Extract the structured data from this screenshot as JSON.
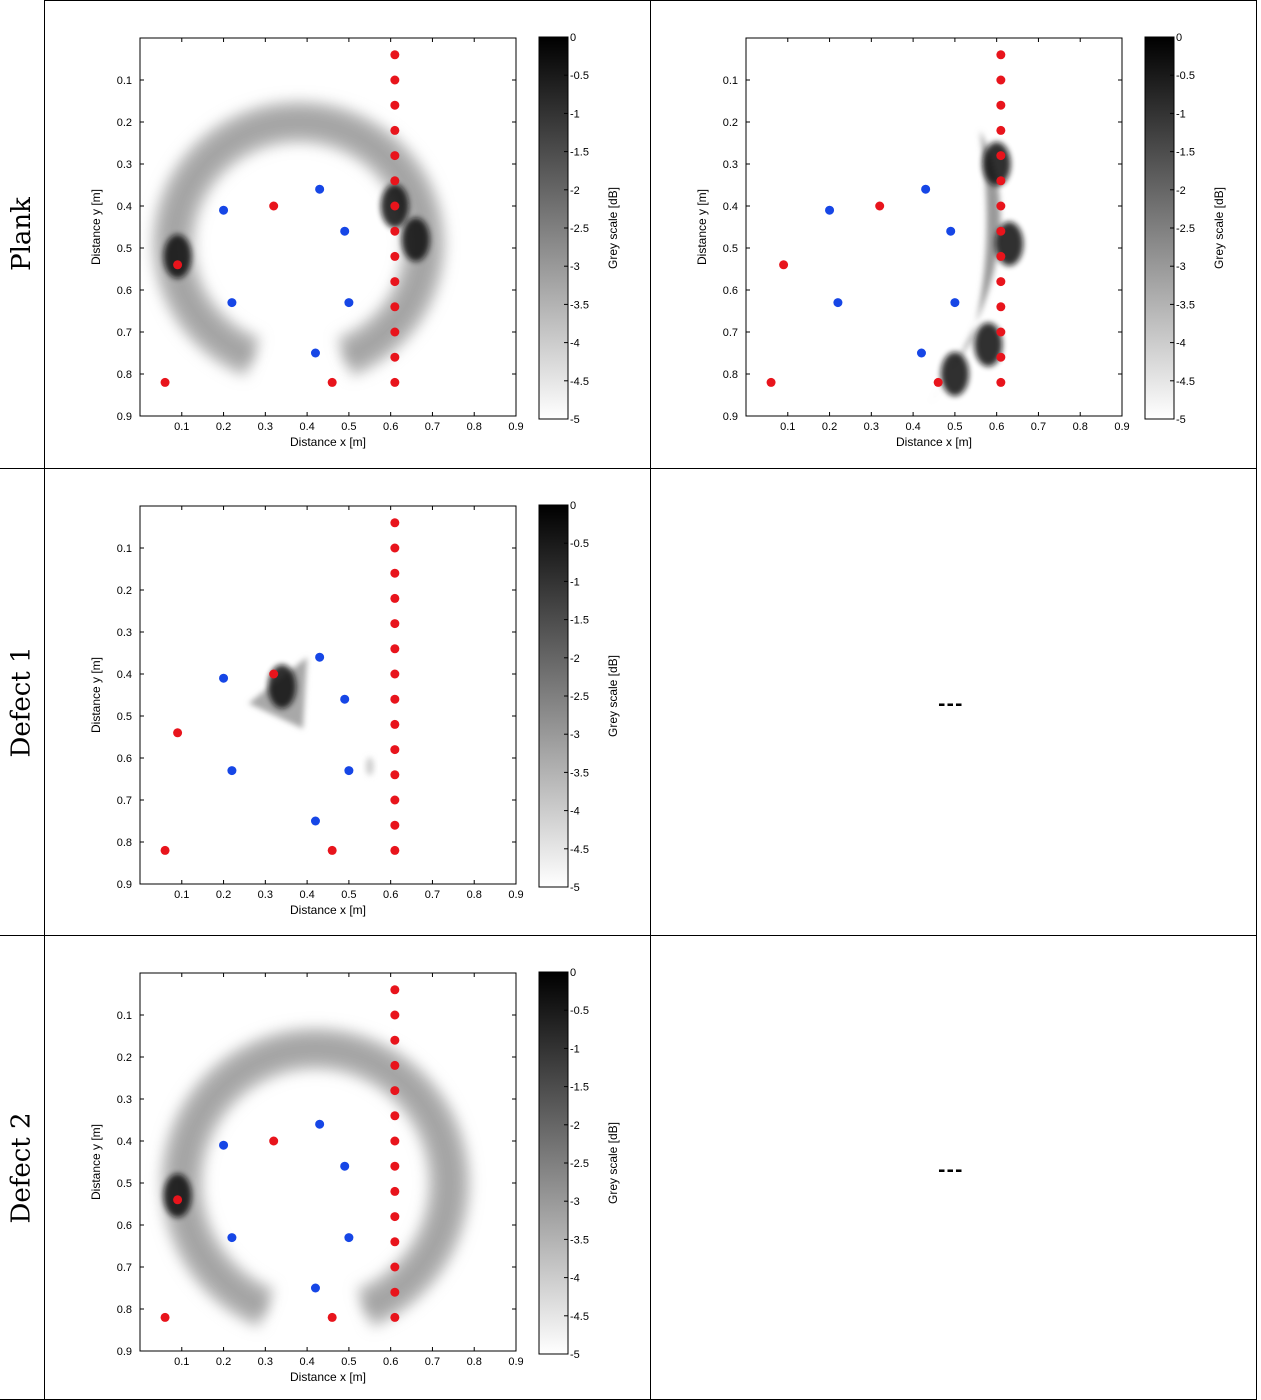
{
  "rows": [
    {
      "label": "Plank"
    },
    {
      "label": "Defect 1"
    },
    {
      "label": "Defect 2"
    }
  ],
  "placeholder_text": "---",
  "colors": {
    "red_marker": "#e8141c",
    "blue_marker": "#1646e6",
    "axis": "#000000"
  },
  "chart_data": [
    {
      "type": "heatmap",
      "panel": "Plank-left",
      "xlabel": "Distance x [m]",
      "ylabel": "Distance y [m]",
      "colorbar_label": "Grey scale [dB]",
      "xticks": [
        "0.1",
        "0.2",
        "0.3",
        "0.4",
        "0.5",
        "0.6",
        "0.7",
        "0.8",
        "0.9"
      ],
      "yticks": [
        "0.1",
        "0.2",
        "0.3",
        "0.4",
        "0.5",
        "0.6",
        "0.7",
        "0.8",
        "0.9"
      ],
      "cbar_ticks": [
        "0",
        "-0.5",
        "-1",
        "-1.5",
        "-2",
        "-2.5",
        "-3",
        "-3.5",
        "-4",
        "-4.5",
        "-5"
      ],
      "xlim": [
        0,
        0.9
      ],
      "ylim": [
        0,
        0.9
      ],
      "clim": [
        -5,
        0
      ],
      "red_points": [
        [
          0.61,
          0.04
        ],
        [
          0.61,
          0.1
        ],
        [
          0.61,
          0.16
        ],
        [
          0.61,
          0.22
        ],
        [
          0.61,
          0.28
        ],
        [
          0.61,
          0.34
        ],
        [
          0.61,
          0.4
        ],
        [
          0.61,
          0.46
        ],
        [
          0.61,
          0.52
        ],
        [
          0.61,
          0.58
        ],
        [
          0.61,
          0.64
        ],
        [
          0.61,
          0.7
        ],
        [
          0.61,
          0.76
        ],
        [
          0.61,
          0.82
        ],
        [
          0.32,
          0.4
        ],
        [
          0.09,
          0.54
        ],
        [
          0.06,
          0.82
        ],
        [
          0.46,
          0.82
        ]
      ],
      "blue_points": [
        [
          0.43,
          0.36
        ],
        [
          0.2,
          0.41
        ],
        [
          0.49,
          0.46
        ],
        [
          0.22,
          0.63
        ],
        [
          0.5,
          0.63
        ],
        [
          0.42,
          0.75
        ]
      ],
      "heat": {
        "kind": "ring",
        "cx": 0.38,
        "cy": 0.49,
        "rx": 0.3,
        "ry": 0.29,
        "width": 0.07,
        "from": 0.0,
        "to": 1.0,
        "dark": [
          [
            0.09,
            0.52
          ],
          [
            0.66,
            0.48
          ],
          [
            0.61,
            0.4
          ]
        ]
      }
    },
    {
      "type": "heatmap",
      "panel": "Plank-right",
      "xlabel": "Distance x [m]",
      "ylabel": "Distance y [m]",
      "colorbar_label": "Grey scale [dB]",
      "xticks": [
        "0.1",
        "0.2",
        "0.3",
        "0.4",
        "0.5",
        "0.6",
        "0.7",
        "0.8",
        "0.9"
      ],
      "yticks": [
        "0.1",
        "0.2",
        "0.3",
        "0.4",
        "0.5",
        "0.6",
        "0.7",
        "0.8",
        "0.9"
      ],
      "cbar_ticks": [
        "0",
        "-0.5",
        "-1",
        "-1.5",
        "-2",
        "-2.5",
        "-3",
        "-3.5",
        "-4",
        "-4.5",
        "-5"
      ],
      "xlim": [
        0,
        0.9
      ],
      "ylim": [
        0,
        0.9
      ],
      "clim": [
        -5,
        0
      ],
      "red_points": [
        [
          0.61,
          0.04
        ],
        [
          0.61,
          0.1
        ],
        [
          0.61,
          0.16
        ],
        [
          0.61,
          0.22
        ],
        [
          0.61,
          0.28
        ],
        [
          0.61,
          0.34
        ],
        [
          0.61,
          0.4
        ],
        [
          0.61,
          0.46
        ],
        [
          0.61,
          0.52
        ],
        [
          0.61,
          0.58
        ],
        [
          0.61,
          0.64
        ],
        [
          0.61,
          0.7
        ],
        [
          0.61,
          0.76
        ],
        [
          0.61,
          0.82
        ],
        [
          0.32,
          0.4
        ],
        [
          0.09,
          0.54
        ],
        [
          0.06,
          0.82
        ],
        [
          0.46,
          0.82
        ]
      ],
      "blue_points": [
        [
          0.43,
          0.36
        ],
        [
          0.2,
          0.41
        ],
        [
          0.49,
          0.46
        ],
        [
          0.22,
          0.63
        ],
        [
          0.5,
          0.63
        ],
        [
          0.42,
          0.75
        ]
      ],
      "heat": {
        "kind": "crescent",
        "dark": [
          [
            0.6,
            0.3
          ],
          [
            0.63,
            0.49
          ],
          [
            0.58,
            0.73
          ],
          [
            0.5,
            0.8
          ]
        ]
      }
    },
    {
      "type": "heatmap",
      "panel": "Defect1-left",
      "xlabel": "Distance x [m]",
      "ylabel": "Distance y [m]",
      "colorbar_label": "Grey scale [dB]",
      "xticks": [
        "0.1",
        "0.2",
        "0.3",
        "0.4",
        "0.5",
        "0.6",
        "0.7",
        "0.8",
        "0.9"
      ],
      "yticks": [
        "0.1",
        "0.2",
        "0.3",
        "0.4",
        "0.5",
        "0.6",
        "0.7",
        "0.8",
        "0.9"
      ],
      "cbar_ticks": [
        "0",
        "-0.5",
        "-1",
        "-1.5",
        "-2",
        "-2.5",
        "-3",
        "-3.5",
        "-4",
        "-4.5",
        "-5"
      ],
      "xlim": [
        0,
        0.9
      ],
      "ylim": [
        0,
        0.9
      ],
      "clim": [
        -5,
        0
      ],
      "red_points": [
        [
          0.61,
          0.04
        ],
        [
          0.61,
          0.1
        ],
        [
          0.61,
          0.16
        ],
        [
          0.61,
          0.22
        ],
        [
          0.61,
          0.28
        ],
        [
          0.61,
          0.34
        ],
        [
          0.61,
          0.4
        ],
        [
          0.61,
          0.46
        ],
        [
          0.61,
          0.52
        ],
        [
          0.61,
          0.58
        ],
        [
          0.61,
          0.64
        ],
        [
          0.61,
          0.7
        ],
        [
          0.61,
          0.76
        ],
        [
          0.61,
          0.82
        ],
        [
          0.32,
          0.4
        ],
        [
          0.09,
          0.54
        ],
        [
          0.06,
          0.82
        ],
        [
          0.46,
          0.82
        ]
      ],
      "blue_points": [
        [
          0.43,
          0.36
        ],
        [
          0.2,
          0.41
        ],
        [
          0.49,
          0.46
        ],
        [
          0.22,
          0.63
        ],
        [
          0.5,
          0.63
        ],
        [
          0.42,
          0.75
        ]
      ],
      "heat": {
        "kind": "blob",
        "dark": [
          [
            0.34,
            0.43
          ]
        ]
      }
    },
    {
      "type": "heatmap",
      "panel": "Defect2-left",
      "xlabel": "Distance x [m]",
      "ylabel": "Distance y [m]",
      "colorbar_label": "Grey scale [dB]",
      "xticks": [
        "0.1",
        "0.2",
        "0.3",
        "0.4",
        "0.5",
        "0.6",
        "0.7",
        "0.8",
        "0.9"
      ],
      "yticks": [
        "0.1",
        "0.2",
        "0.3",
        "0.4",
        "0.5",
        "0.6",
        "0.7",
        "0.8",
        "0.9"
      ],
      "cbar_ticks": [
        "0",
        "-0.5",
        "-1",
        "-1.5",
        "-2",
        "-2.5",
        "-3",
        "-3.5",
        "-4",
        "-4.5",
        "-5"
      ],
      "xlim": [
        0,
        0.9
      ],
      "ylim": [
        0,
        0.9
      ],
      "clim": [
        -5,
        0
      ],
      "red_points": [
        [
          0.61,
          0.04
        ],
        [
          0.61,
          0.1
        ],
        [
          0.61,
          0.16
        ],
        [
          0.61,
          0.22
        ],
        [
          0.61,
          0.28
        ],
        [
          0.61,
          0.34
        ],
        [
          0.61,
          0.4
        ],
        [
          0.61,
          0.46
        ],
        [
          0.61,
          0.52
        ],
        [
          0.61,
          0.58
        ],
        [
          0.61,
          0.64
        ],
        [
          0.61,
          0.7
        ],
        [
          0.61,
          0.76
        ],
        [
          0.61,
          0.82
        ],
        [
          0.32,
          0.4
        ],
        [
          0.09,
          0.54
        ],
        [
          0.06,
          0.82
        ],
        [
          0.46,
          0.82
        ]
      ],
      "blue_points": [
        [
          0.43,
          0.36
        ],
        [
          0.2,
          0.41
        ],
        [
          0.49,
          0.46
        ],
        [
          0.22,
          0.63
        ],
        [
          0.5,
          0.63
        ],
        [
          0.42,
          0.75
        ]
      ],
      "heat": {
        "kind": "ring",
        "cx": 0.42,
        "cy": 0.5,
        "rx": 0.32,
        "ry": 0.32,
        "width": 0.07,
        "from": 0.0,
        "to": 1.0,
        "dark": [
          [
            0.09,
            0.53
          ]
        ]
      }
    }
  ]
}
